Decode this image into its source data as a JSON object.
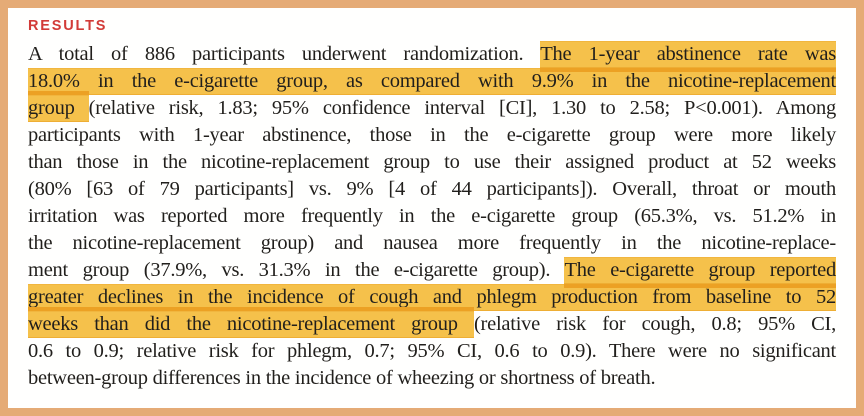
{
  "header": {
    "label": "RESULTS"
  },
  "colors": {
    "border": "#e5ab76",
    "heading_red": "#d23b38",
    "highlight_fill": "#f5c14b",
    "highlight_band": "#eca124",
    "text": "#211f1c"
  },
  "paragraph": {
    "lines": [
      {
        "segments": [
          {
            "t": "A total of 886 participants underwent randomization. ",
            "h": false
          },
          {
            "t": "The 1-year abstinence rate was",
            "h": true,
            "band": "bottom"
          }
        ]
      },
      {
        "segments": [
          {
            "t": "18.0% in the e-cigarette group, as compared with 9.9% in the nicotine-replacement",
            "h": true
          }
        ]
      },
      {
        "segments": [
          {
            "t": "group ",
            "h": true,
            "band": "top"
          },
          {
            "t": "(relative risk, 1.83; 95% confidence interval [CI], 1.30 to 2.58; P<0.001). Among",
            "h": false
          }
        ]
      },
      {
        "segments": [
          {
            "t": "participants with 1-year abstinence, those in the e-cigarette group were more likely",
            "h": false
          }
        ]
      },
      {
        "segments": [
          {
            "t": "than those in the nicotine-replacement group to use their assigned product at 52 weeks",
            "h": false
          }
        ]
      },
      {
        "segments": [
          {
            "t": "(80% [63 of 79 participants] vs. 9% [4 of 44 participants]). Overall, throat or mouth",
            "h": false
          }
        ]
      },
      {
        "segments": [
          {
            "t": "irritation was reported more frequently in the e-cigarette group (65.3%, vs. 51.2% in",
            "h": false
          }
        ]
      },
      {
        "segments": [
          {
            "t": "the nicotine-replacement group) and nausea more frequently in the nicotine-replace-",
            "h": false
          }
        ]
      },
      {
        "segments": [
          {
            "t": "ment group (37.9%, vs. 31.3% in the e-cigarette group). ",
            "h": false
          },
          {
            "t": "The e-cigarette group reported",
            "h": true,
            "band": "bottom"
          }
        ]
      },
      {
        "segments": [
          {
            "t": "greater declines in the incidence of cough and phlegm production from baseline to 52",
            "h": true
          }
        ]
      },
      {
        "segments": [
          {
            "t": "weeks than did the nicotine-replacement group ",
            "h": true,
            "band": "top"
          },
          {
            "t": "(relative risk for cough, 0.8; 95% CI,",
            "h": false
          }
        ]
      },
      {
        "segments": [
          {
            "t": "0.6 to 0.9; relative risk for phlegm, 0.7; 95% CI, 0.6 to 0.9). There were no significant",
            "h": false
          }
        ]
      },
      {
        "segments": [
          {
            "t": "between-group differences in the incidence of wheezing or shortness of breath.",
            "h": false
          }
        ],
        "last": true
      }
    ]
  }
}
